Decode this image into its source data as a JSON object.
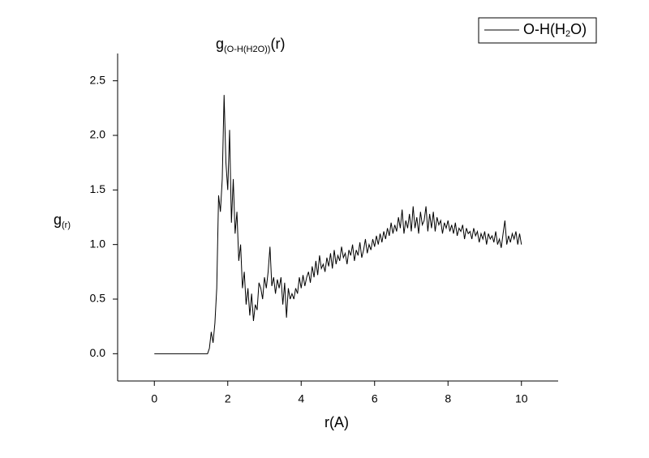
{
  "chart_data": {
    "type": "line",
    "title": {
      "text": "g",
      "subscript": "(O-H(H2O))",
      "suffix": "(r)"
    },
    "xlabel": "r(A)",
    "ylabel": {
      "text": "g",
      "subscript": "(r)"
    },
    "x": [
      0,
      1.45,
      1.5,
      1.55,
      1.6,
      1.65,
      1.7,
      1.75,
      1.8,
      1.85,
      1.9,
      1.95,
      2,
      2.05,
      2.1,
      2.15,
      2.2,
      2.25,
      2.3,
      2.35,
      2.4,
      2.45,
      2.5,
      2.55,
      2.6,
      2.65,
      2.7,
      2.75,
      2.8,
      2.85,
      2.9,
      2.95,
      3,
      3.05,
      3.1,
      3.15,
      3.2,
      3.25,
      3.3,
      3.35,
      3.4,
      3.45,
      3.5,
      3.55,
      3.6,
      3.65,
      3.7,
      3.75,
      3.8,
      3.85,
      3.9,
      3.95,
      4,
      4.05,
      4.1,
      4.15,
      4.2,
      4.25,
      4.3,
      4.35,
      4.4,
      4.45,
      4.5,
      4.55,
      4.6,
      4.65,
      4.7,
      4.75,
      4.8,
      4.85,
      4.9,
      4.95,
      5,
      5.05,
      5.1,
      5.15,
      5.2,
      5.25,
      5.3,
      5.35,
      5.4,
      5.45,
      5.5,
      5.55,
      5.6,
      5.65,
      5.7,
      5.75,
      5.8,
      5.85,
      5.9,
      5.95,
      6,
      6.05,
      6.1,
      6.15,
      6.2,
      6.25,
      6.3,
      6.35,
      6.4,
      6.45,
      6.5,
      6.55,
      6.6,
      6.65,
      6.7,
      6.75,
      6.8,
      6.85,
      6.9,
      6.95,
      7,
      7.05,
      7.1,
      7.15,
      7.2,
      7.25,
      7.3,
      7.35,
      7.4,
      7.45,
      7.5,
      7.55,
      7.6,
      7.65,
      7.7,
      7.75,
      7.8,
      7.85,
      7.9,
      7.95,
      8,
      8.05,
      8.1,
      8.15,
      8.2,
      8.25,
      8.3,
      8.35,
      8.4,
      8.45,
      8.5,
      8.55,
      8.6,
      8.65,
      8.7,
      8.75,
      8.8,
      8.85,
      8.9,
      8.95,
      9,
      9.05,
      9.1,
      9.15,
      9.2,
      9.25,
      9.3,
      9.35,
      9.4,
      9.45,
      9.5,
      9.55,
      9.6,
      9.65,
      9.7,
      9.75,
      9.8,
      9.85,
      9.9,
      9.95,
      10
    ],
    "series": [
      {
        "name": "O-H(H2O)",
        "color": "#000000",
        "values": [
          0,
          0,
          0.05,
          0.2,
          0.1,
          0.28,
          0.6,
          1.45,
          1.3,
          1.6,
          2.37,
          1.75,
          1.5,
          2.05,
          1.2,
          1.6,
          1.1,
          1.3,
          0.85,
          1.0,
          0.6,
          0.75,
          0.45,
          0.6,
          0.35,
          0.55,
          0.3,
          0.45,
          0.4,
          0.65,
          0.6,
          0.5,
          0.7,
          0.6,
          0.75,
          0.98,
          0.62,
          0.7,
          0.55,
          0.68,
          0.6,
          0.7,
          0.45,
          0.65,
          0.33,
          0.6,
          0.5,
          0.55,
          0.5,
          0.6,
          0.55,
          0.7,
          0.6,
          0.72,
          0.62,
          0.7,
          0.75,
          0.65,
          0.8,
          0.7,
          0.85,
          0.72,
          0.9,
          0.78,
          0.82,
          0.75,
          0.88,
          0.8,
          0.92,
          0.78,
          0.95,
          0.82,
          0.9,
          0.85,
          0.98,
          0.88,
          0.92,
          0.82,
          0.95,
          0.9,
          1.0,
          0.85,
          0.95,
          0.9,
          1.02,
          0.88,
          0.95,
          1.05,
          0.92,
          1.0,
          0.95,
          1.05,
          0.98,
          1.08,
          1.0,
          1.1,
          1.02,
          1.12,
          1.05,
          1.15,
          1.08,
          1.2,
          1.1,
          1.18,
          1.12,
          1.25,
          1.15,
          1.32,
          1.1,
          1.22,
          1.15,
          1.28,
          1.12,
          1.35,
          1.15,
          1.25,
          1.1,
          1.3,
          1.18,
          1.22,
          1.35,
          1.12,
          1.28,
          1.15,
          1.3,
          1.12,
          1.25,
          1.18,
          1.22,
          1.1,
          1.2,
          1.15,
          1.22,
          1.12,
          1.18,
          1.1,
          1.2,
          1.08,
          1.15,
          1.12,
          1.18,
          1.05,
          1.15,
          1.1,
          1.12,
          1.05,
          1.15,
          1.08,
          1.12,
          1.02,
          1.1,
          1.05,
          1.12,
          1.0,
          1.1,
          1.05,
          1.08,
          1.02,
          1.12,
          1.0,
          1.05,
          0.97,
          1.1,
          1.22,
          1.0,
          1.08,
          1.02,
          1.1,
          1.05,
          1.12,
          1.0,
          1.1,
          1.0
        ]
      }
    ],
    "xlim": [
      -1,
      11
    ],
    "xticks": [
      0,
      2,
      4,
      6,
      8,
      10
    ],
    "ylim": [
      -0.25,
      2.75
    ],
    "yticks": [
      {
        "value": 0,
        "label": "0.0"
      },
      0.5,
      {
        "value": 1,
        "label": "1.0"
      },
      1.5,
      {
        "value": 2,
        "label": "2.0"
      },
      2.5
    ],
    "grid": false,
    "legend": "top-right"
  }
}
